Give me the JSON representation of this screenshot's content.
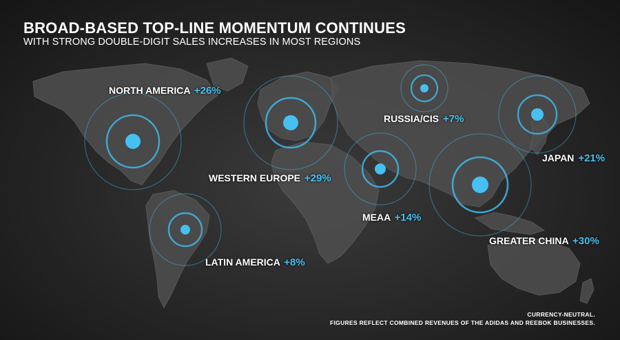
{
  "header": {
    "title": "BROAD-BASED TOP-LINE MOMENTUM CONTINUES",
    "subtitle": "WITH STRONG DOUBLE-DIGIT SALES INCREASES IN MOST REGIONS"
  },
  "colors": {
    "accent": "#45C0F0",
    "text": "#FFFFFF",
    "background": "#2A2A2A"
  },
  "regions": [
    {
      "name": "NORTH AMERICA",
      "growth": "+26%"
    },
    {
      "name": "WESTERN EUROPE",
      "growth": "+29%"
    },
    {
      "name": "RUSSIA/CIS",
      "growth": "+7%"
    },
    {
      "name": "JAPAN",
      "growth": "+21%"
    },
    {
      "name": "MEAA",
      "growth": "+14%"
    },
    {
      "name": "GREATER CHINA",
      "growth": "+30%"
    },
    {
      "name": "LATIN AMERICA",
      "growth": "+8%"
    }
  ],
  "footnotes": {
    "line1": "CURRENCY-NEUTRAL.",
    "line2": "FIGURES REFLECT COMBINED REVENUES OF THE ADIDAS AND REEBOK BUSINESSES."
  }
}
